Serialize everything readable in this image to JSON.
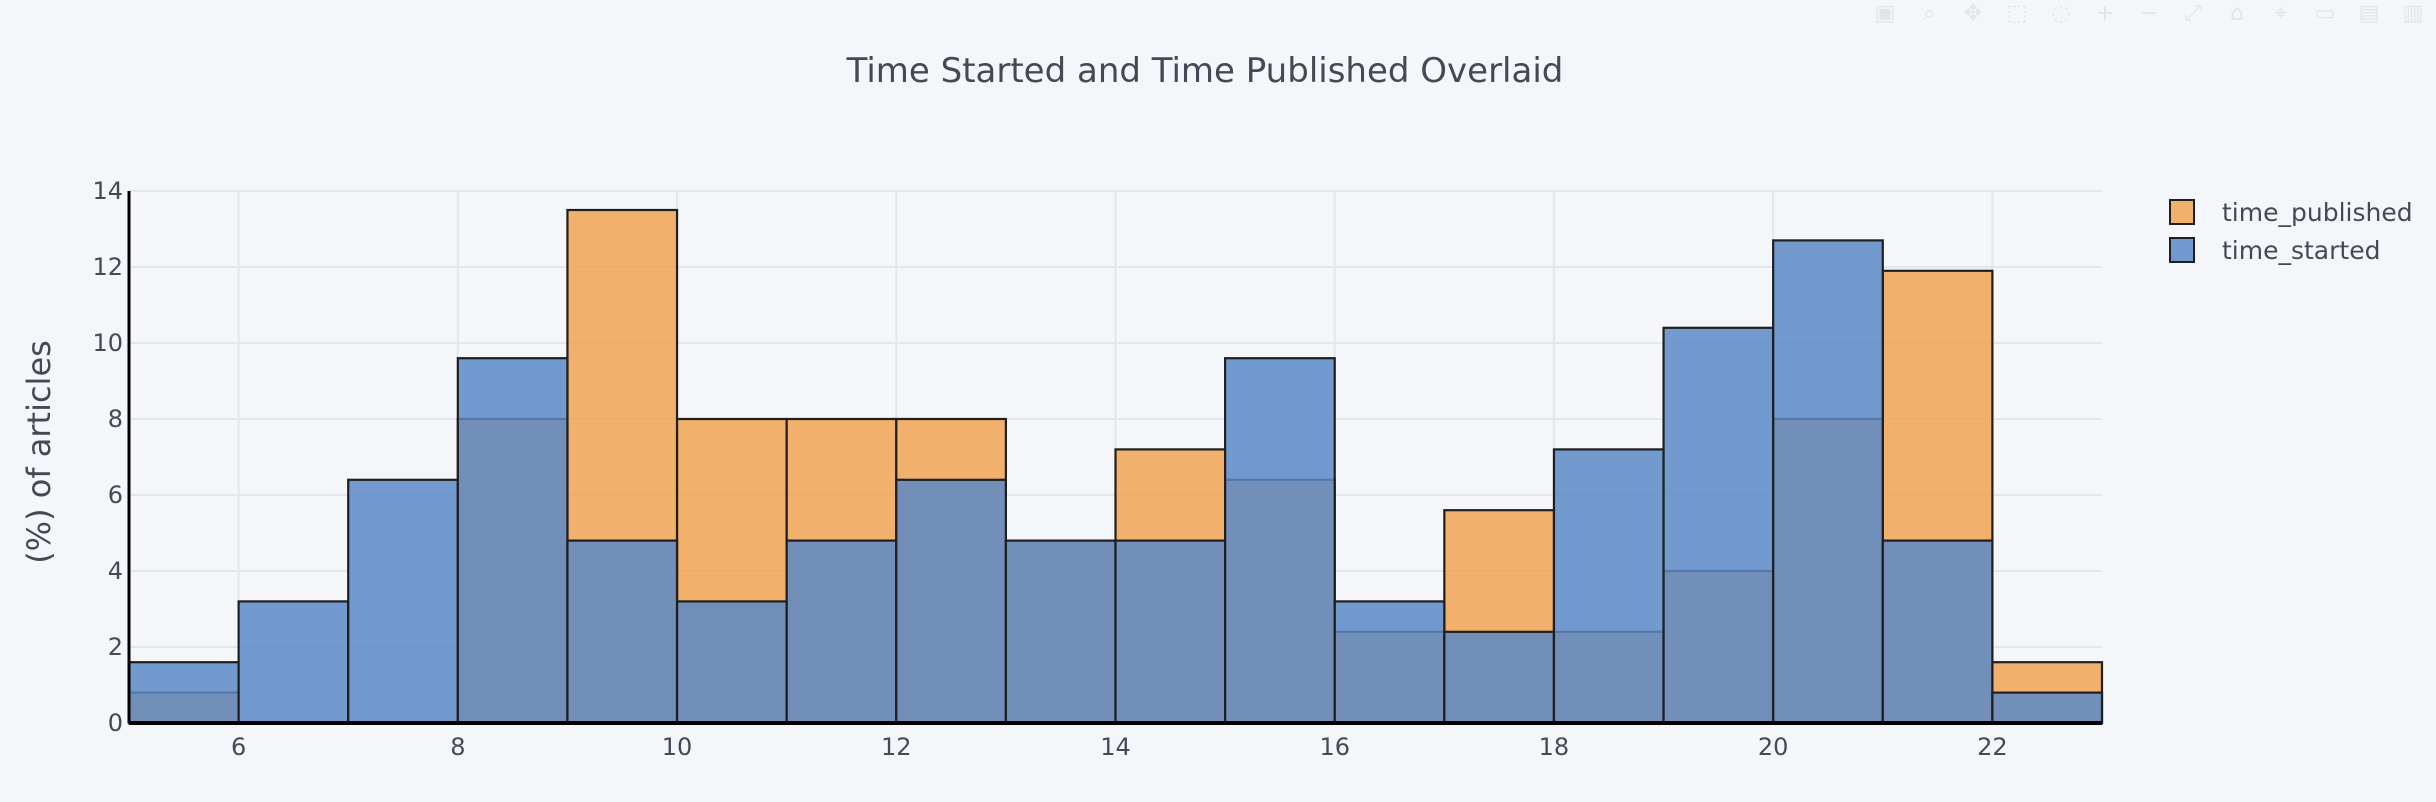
{
  "chart_data": {
    "type": "bar",
    "title": "Time Started and Time Published Overlaid",
    "xlabel": "",
    "ylabel": "(%) of articles",
    "xlim": [
      5,
      23
    ],
    "ylim": [
      0,
      14
    ],
    "x_ticks": [
      6,
      8,
      10,
      12,
      14,
      16,
      18,
      20,
      22
    ],
    "y_ticks": [
      0,
      2,
      4,
      6,
      8,
      10,
      12,
      14
    ],
    "bin_edges": [
      5,
      6,
      7,
      8,
      9,
      10,
      11,
      12,
      13,
      14,
      15,
      16,
      17,
      18,
      19,
      20,
      21,
      22,
      23
    ],
    "barmode": "overlay",
    "grid": true,
    "legend_position": "top-right",
    "series": [
      {
        "name": "time_published",
        "color": "#f0a351",
        "values": [
          0.8,
          0,
          0,
          8.0,
          13.5,
          8.0,
          8.0,
          8.0,
          4.8,
          7.2,
          6.4,
          2.4,
          5.6,
          2.4,
          4.0,
          8.0,
          11.9,
          1.6
        ]
      },
      {
        "name": "time_started",
        "color": "#5b8ac6",
        "values": [
          1.6,
          3.2,
          6.4,
          9.6,
          4.8,
          3.2,
          4.8,
          6.4,
          4.8,
          4.8,
          9.6,
          3.2,
          2.4,
          7.2,
          10.4,
          12.7,
          4.8,
          0.8
        ]
      }
    ]
  },
  "modebar": {
    "icons": [
      "camera-icon",
      "zoom-icon",
      "pan-icon",
      "box-select-icon",
      "lasso-icon",
      "zoom-in-icon",
      "zoom-out-icon",
      "autoscale-icon",
      "reset-axes-icon",
      "spike-lines-icon",
      "hover-closest-icon",
      "hover-compare-icon",
      "plotly-logo-icon"
    ]
  }
}
